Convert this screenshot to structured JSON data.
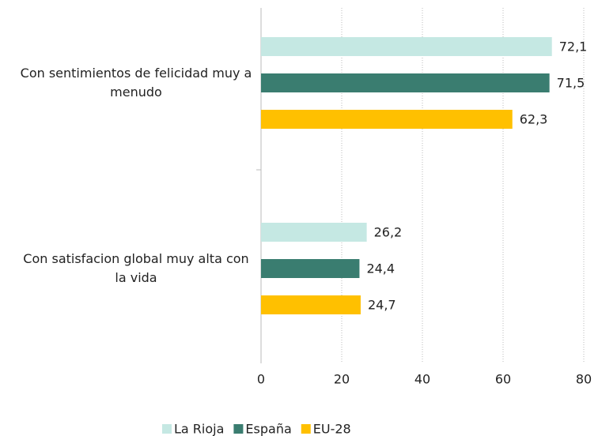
{
  "chart_data": {
    "type": "bar",
    "orientation": "horizontal",
    "categories": [
      "Con sentimientos de felicidad muy a menudo",
      "Con satisfacion global muy alta con la vida"
    ],
    "series": [
      {
        "name": "La Rioja",
        "color": "#c5e8e3",
        "values": [
          72.1,
          26.2
        ],
        "value_labels": [
          "72,1",
          "26,2"
        ]
      },
      {
        "name": "España",
        "color": "#3a7d70",
        "values": [
          71.5,
          24.4
        ],
        "value_labels": [
          "71,5",
          "24,4"
        ]
      },
      {
        "name": "EU-28",
        "color": "#ffc000",
        "values": [
          62.3,
          24.7
        ],
        "value_labels": [
          "62,3",
          "24,7"
        ]
      }
    ],
    "xlim": [
      0,
      80
    ],
    "xticks": [
      0,
      20,
      40,
      60,
      80
    ],
    "grid": true,
    "legend": "bottom"
  }
}
